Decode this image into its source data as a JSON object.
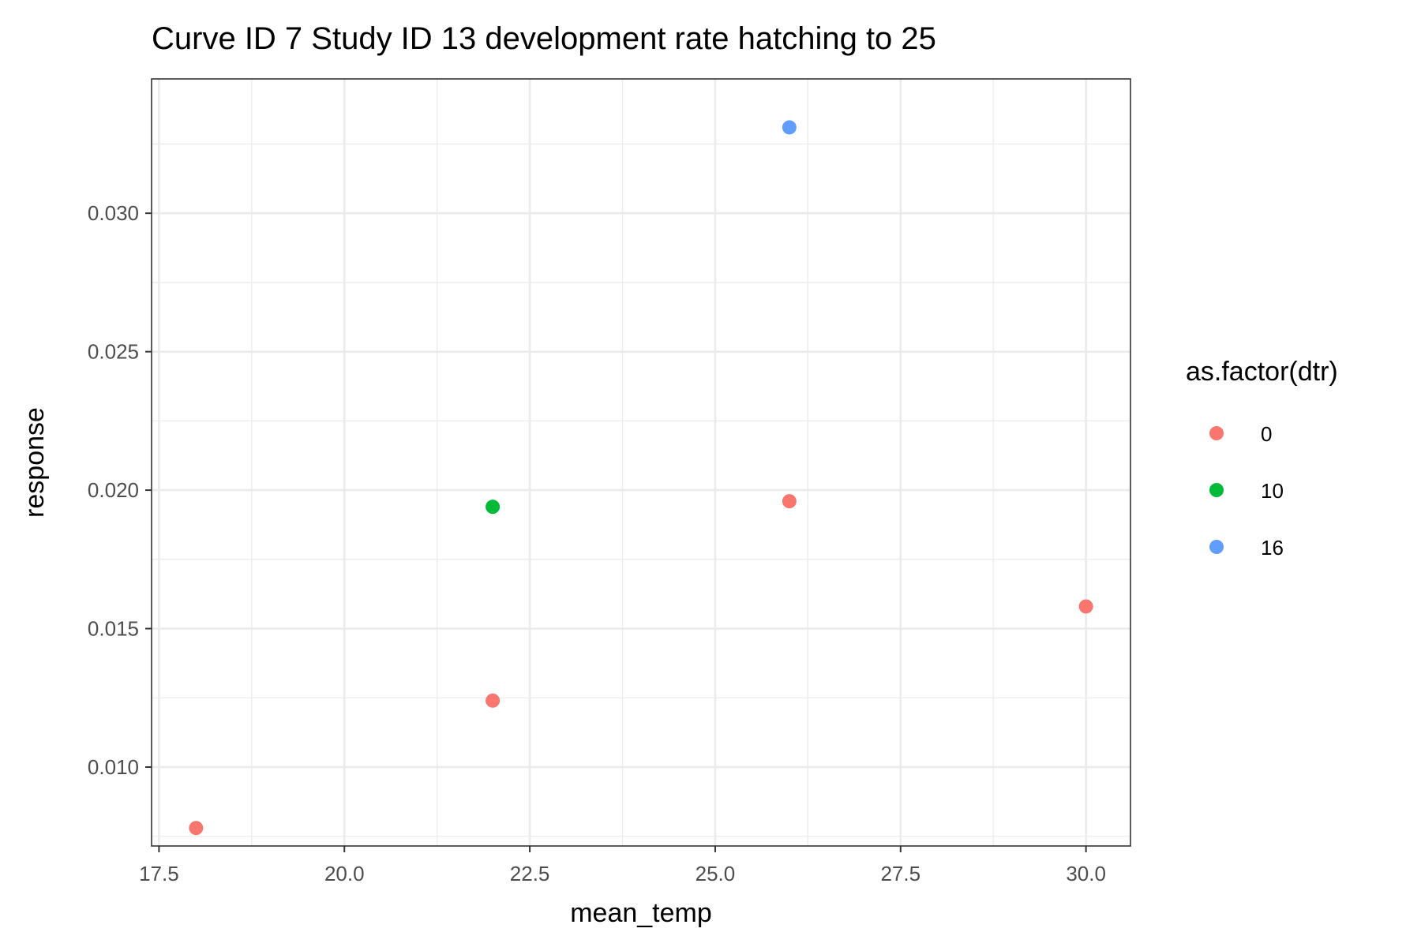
{
  "chart_data": {
    "type": "scatter",
    "title": "Curve ID 7 Study ID 13 development rate hatching to 25",
    "xlabel": "mean_temp",
    "ylabel": "response",
    "xlim": [
      17.4,
      30.6
    ],
    "ylim": [
      0.00715,
      0.03485
    ],
    "x_ticks": [
      17.5,
      20.0,
      22.5,
      25.0,
      27.5,
      30.0
    ],
    "x_tick_labels": [
      "17.5",
      "20.0",
      "22.5",
      "25.0",
      "27.5",
      "30.0"
    ],
    "y_ticks": [
      0.01,
      0.015,
      0.02,
      0.025,
      0.03
    ],
    "y_tick_labels": [
      "0.010",
      "0.015",
      "0.020",
      "0.025",
      "0.030"
    ],
    "grid": true,
    "legend": {
      "title": "as.factor(dtr)",
      "placement": "right",
      "entries": [
        {
          "label": "0",
          "color": "#F8766D"
        },
        {
          "label": "10",
          "color": "#00BA38"
        },
        {
          "label": "16",
          "color": "#619CFF"
        }
      ]
    },
    "series": [
      {
        "name": "0",
        "color": "#F8766D",
        "points": [
          {
            "x": 18,
            "y": 0.0078
          },
          {
            "x": 22,
            "y": 0.0124
          },
          {
            "x": 26,
            "y": 0.0196
          },
          {
            "x": 30,
            "y": 0.0158
          }
        ]
      },
      {
        "name": "10",
        "color": "#00BA38",
        "points": [
          {
            "x": 22,
            "y": 0.0194
          }
        ]
      },
      {
        "name": "16",
        "color": "#619CFF",
        "points": [
          {
            "x": 26,
            "y": 0.0331
          }
        ]
      }
    ]
  }
}
